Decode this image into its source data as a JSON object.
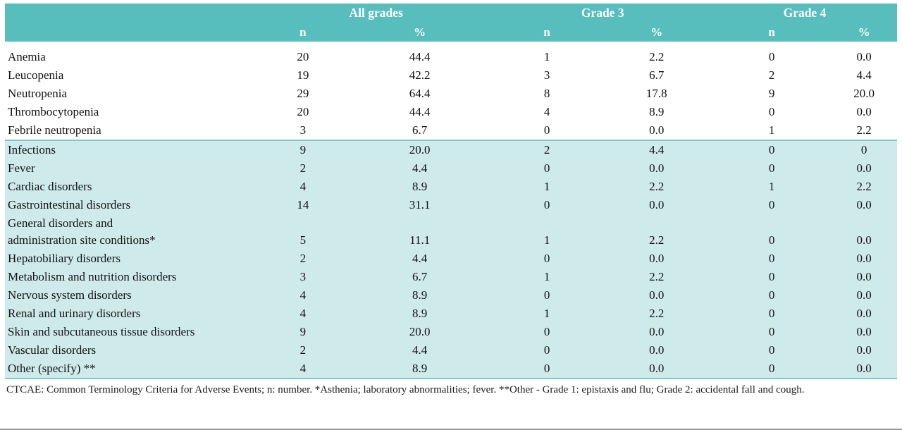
{
  "colors": {
    "header_teal": "#57bdbd",
    "section_light_teal": "#cfeaea",
    "text": "#121212"
  },
  "table": {
    "column_groups": [
      {
        "label": "All grades"
      },
      {
        "label": "Grade 3"
      },
      {
        "label": "Grade 4"
      }
    ],
    "subheaders": [
      "n",
      "%"
    ],
    "sections": [
      {
        "shaded": false,
        "rows": [
          {
            "label": "Anemia",
            "values": [
              "20",
              "44.4",
              "1",
              "2.2",
              "0",
              "0.0"
            ]
          },
          {
            "label": "Leucopenia",
            "values": [
              "19",
              "42.2",
              "3",
              "6.7",
              "2",
              "4.4"
            ]
          },
          {
            "label": "Neutropenia",
            "values": [
              "29",
              "64.4",
              "8",
              "17.8",
              "9",
              "20.0"
            ]
          },
          {
            "label": "Thrombocytopenia",
            "values": [
              "20",
              "44.4",
              "4",
              "8.9",
              "0",
              "0.0"
            ]
          },
          {
            "label": "Febrile neutropenia",
            "values": [
              "3",
              "6.7",
              "0",
              "0.0",
              "1",
              "2.2"
            ]
          }
        ]
      },
      {
        "shaded": true,
        "rows": [
          {
            "label": "Infections",
            "values": [
              "9",
              "20.0",
              "2",
              "4.4",
              "0",
              "0"
            ]
          },
          {
            "label": "Fever",
            "values": [
              "2",
              "4.4",
              "0",
              "0.0",
              "0",
              "0.0"
            ]
          },
          {
            "label": "Cardiac disorders",
            "values": [
              "4",
              "8.9",
              "1",
              "2.2",
              "1",
              "2.2"
            ]
          },
          {
            "label": "Gastrointestinal disorders",
            "values": [
              "14",
              "31.1",
              "0",
              "0.0",
              "0",
              "0.0"
            ]
          },
          {
            "label": "General disorders and\nadministration site conditions*",
            "values": [
              "5",
              "11.1",
              "1",
              "2.2",
              "0",
              "0.0"
            ]
          },
          {
            "label": "Hepatobiliary disorders",
            "values": [
              "2",
              "4.4",
              "0",
              "0.0",
              "0",
              "0.0"
            ]
          },
          {
            "label": "Metabolism and nutrition disorders",
            "values": [
              "3",
              "6.7",
              "1",
              "2.2",
              "0",
              "0.0"
            ]
          },
          {
            "label": "Nervous system disorders",
            "values": [
              "4",
              "8.9",
              "0",
              "0.0",
              "0",
              "0.0"
            ]
          },
          {
            "label": "Renal and urinary disorders",
            "values": [
              "4",
              "8.9",
              "1",
              "2.2",
              "0",
              "0.0"
            ]
          },
          {
            "label": "Skin and subcutaneous tissue disorders",
            "values": [
              "9",
              "20.0",
              "0",
              "0.0",
              "0",
              "0.0"
            ]
          },
          {
            "label": "Vascular disorders",
            "values": [
              "2",
              "4.4",
              "0",
              "0.0",
              "0",
              "0.0"
            ]
          },
          {
            "label": "Other (specify) **",
            "values": [
              "4",
              "8.9",
              "0",
              "0.0",
              "0",
              "0.0"
            ]
          }
        ]
      }
    ],
    "footnote": "CTCAE: Common Terminology Criteria for Adverse Events; n: number. *Asthenia; laboratory abnormalities; fever. **Other - Grade 1: epistaxis and flu; Grade 2: accidental fall and cough."
  }
}
